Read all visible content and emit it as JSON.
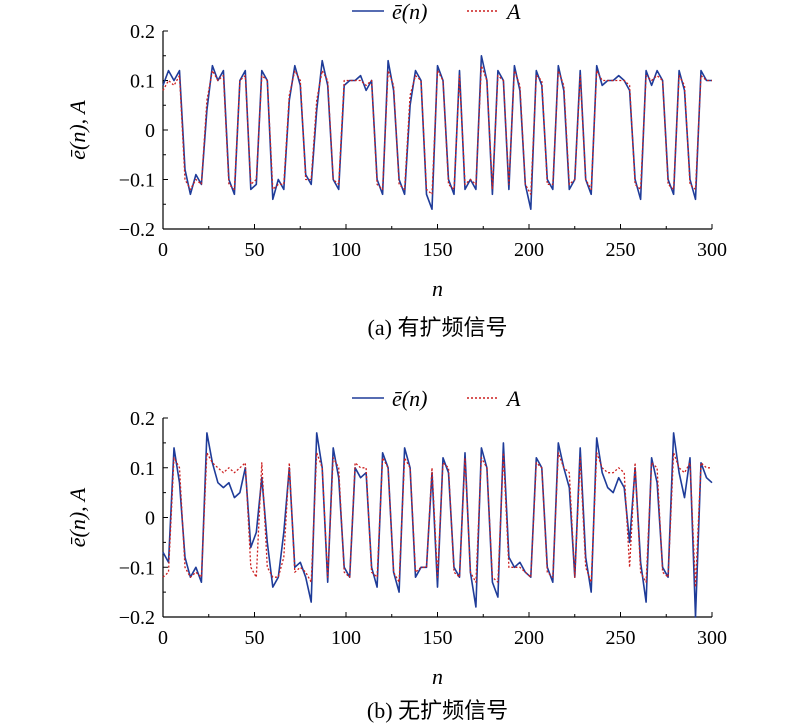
{
  "chart_data": [
    {
      "type": "line",
      "caption": "(a) 有扩频信号",
      "xlabel": "n",
      "ylabel": "ē(n), A",
      "xlim": [
        0,
        300
      ],
      "ylim": [
        -0.2,
        0.2
      ],
      "xticks": [
        "0",
        "50",
        "100",
        "150",
        "200",
        "250",
        "300"
      ],
      "yticks": [
        "0.2",
        "0.1",
        "0",
        "−0.1",
        "−0.2"
      ],
      "legend_position": "top-center",
      "grid": false,
      "series": [
        {
          "name": "ē(n)",
          "color": "#1f3c99",
          "style": "solid",
          "x": [
            0,
            3,
            6,
            9,
            12,
            15,
            18,
            21,
            24,
            27,
            30,
            33,
            36,
            39,
            42,
            45,
            48,
            51,
            54,
            57,
            60,
            63,
            66,
            69,
            72,
            75,
            78,
            81,
            84,
            87,
            90,
            93,
            96,
            99,
            102,
            105,
            108,
            111,
            114,
            117,
            120,
            123,
            126,
            129,
            132,
            135,
            138,
            141,
            144,
            147,
            150,
            153,
            156,
            159,
            162,
            165,
            168,
            171,
            174,
            177,
            180,
            183,
            186,
            189,
            192,
            195,
            198,
            201,
            204,
            207,
            210,
            213,
            216,
            219,
            222,
            225,
            228,
            231,
            234,
            237,
            240,
            243,
            246,
            249,
            252,
            255,
            258,
            261,
            264,
            267,
            270,
            273,
            276,
            279,
            282,
            285,
            288,
            291,
            294,
            297,
            300
          ],
          "values": [
            0.09,
            0.12,
            0.1,
            0.12,
            -0.08,
            -0.13,
            -0.09,
            -0.11,
            0.04,
            0.13,
            0.1,
            0.12,
            -0.1,
            -0.13,
            0.1,
            0.12,
            -0.12,
            -0.11,
            0.12,
            0.1,
            -0.14,
            -0.1,
            -0.12,
            0.06,
            0.13,
            0.09,
            -0.09,
            -0.11,
            0.04,
            0.14,
            0.09,
            -0.1,
            -0.12,
            0.09,
            0.1,
            0.1,
            0.11,
            0.08,
            0.1,
            -0.1,
            -0.13,
            0.14,
            0.08,
            -0.1,
            -0.13,
            0.05,
            0.12,
            0.1,
            -0.13,
            -0.16,
            0.13,
            0.1,
            -0.1,
            -0.13,
            0.12,
            -0.12,
            -0.1,
            -0.12,
            0.15,
            0.1,
            -0.13,
            0.12,
            0.1,
            -0.12,
            0.13,
            0.08,
            -0.11,
            -0.16,
            0.12,
            0.09,
            -0.1,
            -0.12,
            0.13,
            0.08,
            -0.12,
            -0.1,
            0.12,
            -0.1,
            -0.13,
            0.13,
            0.09,
            0.1,
            0.1,
            0.11,
            0.1,
            0.08,
            -0.1,
            -0.14,
            0.12,
            0.09,
            0.12,
            0.1,
            -0.1,
            -0.13,
            0.12,
            0.08,
            -0.1,
            -0.14,
            0.12,
            0.1,
            0.1
          ]
        },
        {
          "name": "A",
          "color": "#cc1f1f",
          "style": "dotted",
          "x": [
            0,
            3,
            6,
            9,
            12,
            15,
            18,
            21,
            24,
            27,
            30,
            33,
            36,
            39,
            42,
            45,
            48,
            51,
            54,
            57,
            60,
            63,
            66,
            69,
            72,
            75,
            78,
            81,
            84,
            87,
            90,
            93,
            96,
            99,
            102,
            105,
            108,
            111,
            114,
            117,
            120,
            123,
            126,
            129,
            132,
            135,
            138,
            141,
            144,
            147,
            150,
            153,
            156,
            159,
            162,
            165,
            168,
            171,
            174,
            177,
            180,
            183,
            186,
            189,
            192,
            195,
            198,
            201,
            204,
            207,
            210,
            213,
            216,
            219,
            222,
            225,
            228,
            231,
            234,
            237,
            240,
            243,
            246,
            249,
            252,
            255,
            258,
            261,
            264,
            267,
            270,
            273,
            276,
            279,
            282,
            285,
            288,
            291,
            294,
            297,
            300
          ],
          "values": [
            0.08,
            0.1,
            0.09,
            0.11,
            -0.1,
            -0.12,
            -0.1,
            -0.11,
            0.06,
            0.12,
            0.1,
            0.11,
            -0.11,
            -0.12,
            0.1,
            0.11,
            -0.11,
            -0.1,
            0.11,
            0.1,
            -0.12,
            -0.11,
            -0.11,
            0.07,
            0.12,
            0.1,
            -0.1,
            -0.1,
            0.06,
            0.12,
            0.1,
            -0.1,
            -0.11,
            0.1,
            0.1,
            0.1,
            0.1,
            0.09,
            0.1,
            -0.11,
            -0.12,
            0.12,
            0.09,
            -0.11,
            -0.12,
            0.07,
            0.11,
            0.1,
            -0.12,
            -0.13,
            0.12,
            0.1,
            -0.11,
            -0.12,
            0.11,
            -0.11,
            -0.1,
            -0.11,
            0.13,
            0.1,
            -0.12,
            0.11,
            0.1,
            -0.11,
            0.12,
            0.09,
            -0.11,
            -0.13,
            0.11,
            0.1,
            -0.11,
            -0.11,
            0.12,
            0.09,
            -0.11,
            -0.1,
            0.11,
            -0.1,
            -0.12,
            0.12,
            0.1,
            0.1,
            0.1,
            0.1,
            0.1,
            0.09,
            -0.11,
            -0.12,
            0.11,
            0.1,
            0.11,
            0.1,
            -0.11,
            -0.12,
            0.11,
            0.09,
            -0.11,
            -0.12,
            0.11,
            0.1,
            0.1
          ]
        }
      ]
    },
    {
      "type": "line",
      "caption": "(b) 无扩频信号",
      "xlabel": "n",
      "ylabel": "ē(n), A",
      "xlim": [
        0,
        300
      ],
      "ylim": [
        -0.2,
        0.2
      ],
      "xticks": [
        "0",
        "50",
        "100",
        "150",
        "200",
        "250",
        "300"
      ],
      "yticks": [
        "0.2",
        "0.1",
        "0",
        "−0.1",
        "−0.2"
      ],
      "legend_position": "top-center",
      "grid": false,
      "series": [
        {
          "name": "ē(n)",
          "color": "#1f3c99",
          "style": "solid",
          "x": [
            0,
            3,
            6,
            9,
            12,
            15,
            18,
            21,
            24,
            27,
            30,
            33,
            36,
            39,
            42,
            45,
            48,
            51,
            54,
            57,
            60,
            63,
            66,
            69,
            72,
            75,
            78,
            81,
            84,
            87,
            90,
            93,
            96,
            99,
            102,
            105,
            108,
            111,
            114,
            117,
            120,
            123,
            126,
            129,
            132,
            135,
            138,
            141,
            144,
            147,
            150,
            153,
            156,
            159,
            162,
            165,
            168,
            171,
            174,
            177,
            180,
            183,
            186,
            189,
            192,
            195,
            198,
            201,
            204,
            207,
            210,
            213,
            216,
            219,
            222,
            225,
            228,
            231,
            234,
            237,
            240,
            243,
            246,
            249,
            252,
            255,
            258,
            261,
            264,
            267,
            270,
            273,
            276,
            279,
            282,
            285,
            288,
            291,
            294,
            297,
            300
          ],
          "values": [
            -0.07,
            -0.09,
            0.14,
            0.07,
            -0.08,
            -0.12,
            -0.1,
            -0.13,
            0.17,
            0.11,
            0.07,
            0.06,
            0.07,
            0.04,
            0.05,
            0.1,
            -0.06,
            -0.03,
            0.08,
            -0.05,
            -0.14,
            -0.12,
            -0.03,
            0.1,
            -0.1,
            -0.09,
            -0.12,
            -0.17,
            0.17,
            0.1,
            -0.13,
            0.14,
            0.08,
            -0.1,
            -0.12,
            0.1,
            0.08,
            0.09,
            -0.1,
            -0.14,
            0.13,
            0.1,
            -0.11,
            -0.15,
            0.14,
            0.1,
            -0.12,
            -0.1,
            -0.1,
            0.09,
            -0.14,
            0.12,
            0.09,
            -0.1,
            -0.12,
            0.13,
            -0.11,
            -0.18,
            0.14,
            0.1,
            -0.13,
            -0.16,
            0.15,
            -0.08,
            -0.1,
            -0.09,
            -0.11,
            -0.12,
            0.12,
            0.1,
            -0.1,
            -0.13,
            0.15,
            0.1,
            0.06,
            -0.12,
            0.14,
            -0.08,
            -0.15,
            0.16,
            0.09,
            0.06,
            0.05,
            0.08,
            0.06,
            -0.05,
            0.1,
            -0.09,
            -0.17,
            0.12,
            0.07,
            -0.1,
            -0.12,
            0.17,
            0.09,
            0.04,
            0.12,
            -0.2,
            0.11,
            0.08,
            0.07
          ]
        },
        {
          "name": "A",
          "color": "#cc1f1f",
          "style": "dotted",
          "x": [
            0,
            3,
            6,
            9,
            12,
            15,
            18,
            21,
            24,
            27,
            30,
            33,
            36,
            39,
            42,
            45,
            48,
            51,
            54,
            57,
            60,
            63,
            66,
            69,
            72,
            75,
            78,
            81,
            84,
            87,
            90,
            93,
            96,
            99,
            102,
            105,
            108,
            111,
            114,
            117,
            120,
            123,
            126,
            129,
            132,
            135,
            138,
            141,
            144,
            147,
            150,
            153,
            156,
            159,
            162,
            165,
            168,
            171,
            174,
            177,
            180,
            183,
            186,
            189,
            192,
            195,
            198,
            201,
            204,
            207,
            210,
            213,
            216,
            219,
            222,
            225,
            228,
            231,
            234,
            237,
            240,
            243,
            246,
            249,
            252,
            255,
            258,
            261,
            264,
            267,
            270,
            273,
            276,
            279,
            282,
            285,
            288,
            291,
            294,
            297,
            300
          ],
          "values": [
            -0.12,
            -0.11,
            0.12,
            0.1,
            -0.1,
            -0.12,
            -0.11,
            -0.12,
            0.13,
            0.11,
            0.1,
            0.09,
            0.1,
            0.09,
            0.1,
            0.11,
            -0.1,
            -0.12,
            0.11,
            -0.1,
            -0.12,
            -0.12,
            -0.08,
            0.11,
            -0.11,
            -0.1,
            -0.11,
            -0.13,
            0.13,
            0.1,
            -0.12,
            0.12,
            0.1,
            -0.11,
            -0.12,
            0.11,
            0.1,
            0.1,
            -0.11,
            -0.12,
            0.12,
            0.1,
            -0.11,
            -0.13,
            0.12,
            0.1,
            -0.11,
            -0.1,
            -0.1,
            0.1,
            -0.12,
            0.11,
            0.1,
            -0.11,
            -0.12,
            0.12,
            -0.11,
            -0.13,
            0.12,
            0.1,
            -0.12,
            -0.13,
            0.13,
            -0.1,
            -0.1,
            -0.1,
            -0.11,
            -0.12,
            0.11,
            0.1,
            -0.11,
            -0.12,
            0.13,
            0.1,
            0.09,
            -0.12,
            0.12,
            -0.1,
            -0.13,
            0.13,
            0.1,
            0.09,
            0.09,
            0.1,
            0.09,
            -0.1,
            0.11,
            -0.11,
            -0.13,
            0.11,
            0.1,
            -0.11,
            -0.12,
            0.13,
            0.1,
            0.09,
            0.11,
            -0.14,
            0.11,
            0.1,
            0.1
          ]
        }
      ]
    }
  ]
}
